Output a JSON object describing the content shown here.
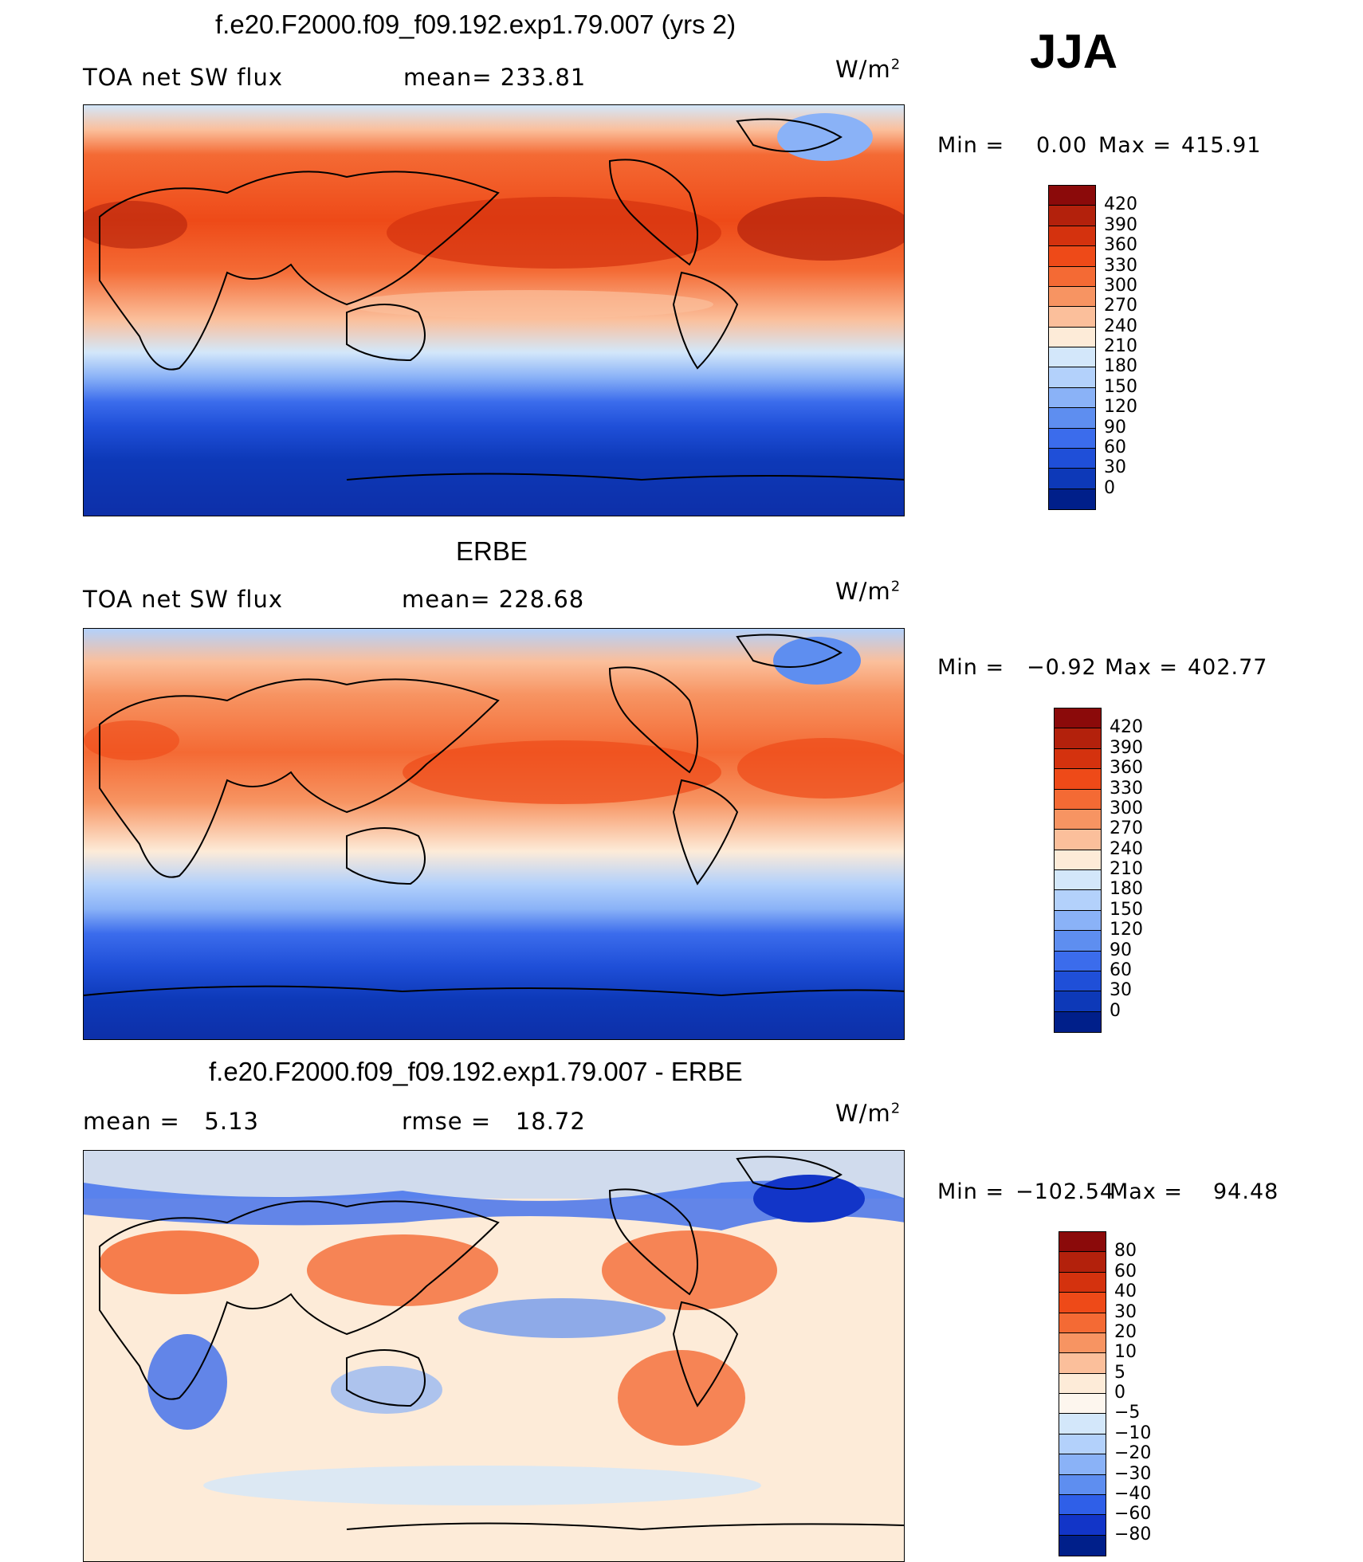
{
  "season": "JJA",
  "panels": [
    {
      "title": "f.e20.F2000.f09_f09.192.exp1.79.007 (yrs 2)",
      "left_label": "TOA net SW flux",
      "stat_label": "mean= 233.81",
      "unit_base": "W/m",
      "unit_exp": "2",
      "min_label": "Min =",
      "min_value": "0.00",
      "max_label": "Max =",
      "max_value": "415.91",
      "colorbar_ticks": [
        "420",
        "390",
        "360",
        "330",
        "300",
        "270",
        "240",
        "210",
        "180",
        "150",
        "120",
        "90",
        "60",
        "30",
        "0"
      ],
      "colors": [
        "#8b0a0a",
        "#b3210c",
        "#d4320e",
        "#ee4a18",
        "#f46a34",
        "#f79462",
        "#fbbf9b",
        "#fdebd8",
        "#d3e7fa",
        "#b3d1fb",
        "#8ab2f7",
        "#5e8ef0",
        "#3b6cec",
        "#1f4fd8",
        "#0d39b8",
        "#001f8a"
      ]
    },
    {
      "title": "ERBE",
      "left_label": "TOA net SW flux",
      "stat_label": "mean= 228.68",
      "unit_base": "W/m",
      "unit_exp": "2",
      "min_label": "Min =",
      "min_value": "−0.92",
      "max_label": "Max =",
      "max_value": "402.77",
      "colorbar_ticks": [
        "420",
        "390",
        "360",
        "330",
        "300",
        "270",
        "240",
        "210",
        "180",
        "150",
        "120",
        "90",
        "60",
        "30",
        "0"
      ],
      "colors": [
        "#8b0a0a",
        "#b3210c",
        "#d4320e",
        "#ee4a18",
        "#f46a34",
        "#f79462",
        "#fbbf9b",
        "#fdebd8",
        "#d3e7fa",
        "#b3d1fb",
        "#8ab2f7",
        "#5e8ef0",
        "#3b6cec",
        "#1f4fd8",
        "#0d39b8",
        "#001f8a"
      ]
    },
    {
      "title": "f.e20.F2000.f09_f09.192.exp1.79.007 - ERBE",
      "left_label": "mean =   5.13",
      "stat_label": "rmse =   18.72",
      "unit_base": "W/m",
      "unit_exp": "2",
      "min_label": "Min =",
      "min_value": "−102.54",
      "max_label": "Max =",
      "max_value": "94.48",
      "colorbar_ticks": [
        "80",
        "60",
        "40",
        "30",
        "20",
        "10",
        "5",
        "0",
        "−5",
        "−10",
        "−20",
        "−30",
        "−40",
        "−60",
        "−80"
      ],
      "colors": [
        "#8b0a0a",
        "#b3210c",
        "#d4320e",
        "#ee4a18",
        "#f46a34",
        "#f79462",
        "#fbbf9b",
        "#fdebd8",
        "#fdf6ee",
        "#d3e7fa",
        "#b3d1fb",
        "#8ab2f7",
        "#5e8ef0",
        "#2f5fe8",
        "#1235c8",
        "#001f8a"
      ]
    }
  ]
}
